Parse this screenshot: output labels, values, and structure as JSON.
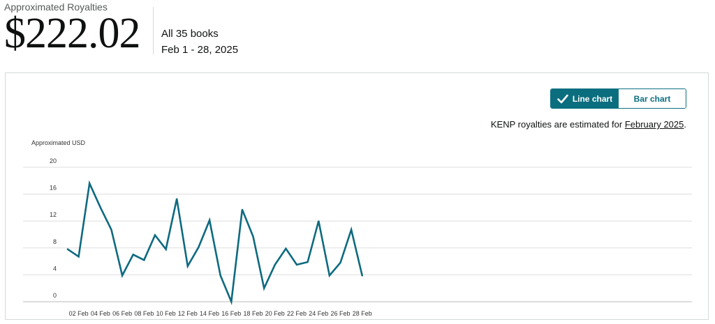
{
  "header": {
    "title": "Approximated Royalties",
    "amount": "$222.02",
    "books": "All 35 books",
    "date_range": "Feb 1 - 28, 2025"
  },
  "toggle": {
    "line_label": "Line chart",
    "bar_label": "Bar chart",
    "active": "line"
  },
  "note": {
    "prefix": "KENP royalties are estimated for ",
    "link": "February 2025",
    "suffix": "."
  },
  "colors": {
    "accent": "#0b6e7f",
    "line": "#0e6a80",
    "grid": "#dddddd"
  },
  "chart_data": {
    "type": "line",
    "ylabel": "Approximated USD",
    "ylim": [
      0,
      20
    ],
    "yticks": [
      0,
      4,
      8,
      12,
      16,
      20
    ],
    "grid": true,
    "x": [
      1,
      2,
      3,
      4,
      5,
      6,
      7,
      8,
      9,
      10,
      11,
      12,
      13,
      14,
      15,
      16,
      17,
      18,
      19,
      20,
      21,
      22,
      23,
      24,
      25,
      26,
      27,
      28
    ],
    "xtick_days": [
      2,
      4,
      6,
      8,
      10,
      12,
      14,
      16,
      18,
      20,
      22,
      24,
      26,
      28
    ],
    "xticks": [
      "02 Feb",
      "04 Feb",
      "06 Feb",
      "08 Feb",
      "10 Feb",
      "12 Feb",
      "14 Feb",
      "16 Feb",
      "18 Feb",
      "20 Feb",
      "22 Feb",
      "24 Feb",
      "26 Feb",
      "28 Feb"
    ],
    "series": [
      {
        "values": [
          7.8,
          6.7,
          17.6,
          14.0,
          10.7,
          3.9,
          7.0,
          6.2,
          9.9,
          7.8,
          15.3,
          5.3,
          8.1,
          12.1,
          3.9,
          0.0,
          13.7,
          9.7,
          2.0,
          5.5,
          7.9,
          5.5,
          5.9,
          12.0,
          3.9,
          5.8,
          10.7,
          3.9
        ]
      }
    ]
  }
}
